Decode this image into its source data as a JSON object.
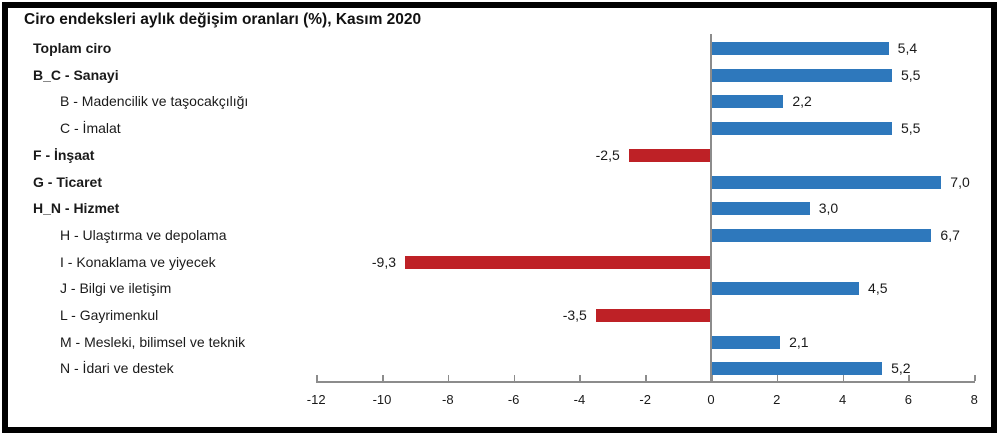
{
  "title": "Ciro endeksleri aylık değişim oranları (%), Kasım 2020",
  "colors": {
    "positive_bar": "#2e78bc",
    "negative_bar": "#be2126",
    "axis": "#8c8c8c",
    "frame_border": "#000000",
    "background": "#ffffff",
    "text": "#1a1a1a"
  },
  "chart_data": {
    "type": "bar",
    "orientation": "horizontal",
    "title": "Ciro endeksleri aylık değişim oranları (%), Kasım 2020",
    "xlabel": "",
    "ylabel": "",
    "xlim": [
      -12,
      8
    ],
    "xticks": [
      -12,
      -10,
      -8,
      -6,
      -4,
      -2,
      0,
      2,
      4,
      6,
      8
    ],
    "xtick_labels": [
      "-12",
      "-10",
      "-8",
      "-6",
      "-4",
      "-2",
      "0",
      "2",
      "4",
      "6",
      "8"
    ],
    "grid": false,
    "legend": false,
    "rows": [
      {
        "category": "Toplam ciro",
        "value": 5.4,
        "value_label": "5,4",
        "bold": true
      },
      {
        "category": "B_C - Sanayi",
        "value": 5.5,
        "value_label": "5,5",
        "bold": true
      },
      {
        "category": "B - Madencilik ve taşocakçılığı",
        "value": 2.2,
        "value_label": "2,2",
        "bold": false
      },
      {
        "category": "C - İmalat",
        "value": 5.5,
        "value_label": "5,5",
        "bold": false
      },
      {
        "category": "F - İnşaat",
        "value": -2.5,
        "value_label": "-2,5",
        "bold": true
      },
      {
        "category": "G - Ticaret",
        "value": 7.0,
        "value_label": "7,0",
        "bold": true
      },
      {
        "category": "H_N - Hizmet",
        "value": 3.0,
        "value_label": "3,0",
        "bold": true
      },
      {
        "category": "H - Ulaştırma ve depolama",
        "value": 6.7,
        "value_label": "6,7",
        "bold": false
      },
      {
        "category": "I - Konaklama ve yiyecek",
        "value": -9.3,
        "value_label": "-9,3",
        "bold": false
      },
      {
        "category": "J - Bilgi ve iletişim",
        "value": 4.5,
        "value_label": "4,5",
        "bold": false
      },
      {
        "category": "L - Gayrimenkul",
        "value": -3.5,
        "value_label": "-3,5",
        "bold": false
      },
      {
        "category": "M - Mesleki, bilimsel ve teknik",
        "value": 2.1,
        "value_label": "2,1",
        "bold": false
      },
      {
        "category": "N - İdari ve destek",
        "value": 5.2,
        "value_label": "5,2",
        "bold": false
      }
    ]
  }
}
